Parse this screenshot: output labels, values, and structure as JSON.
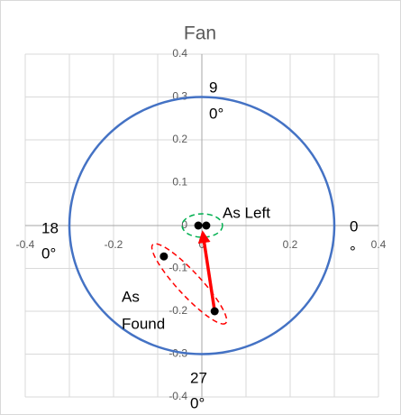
{
  "chart_data": {
    "type": "scatter",
    "title": "Fan",
    "xlim": [
      -0.4,
      0.4
    ],
    "ylim": [
      -0.4,
      0.4
    ],
    "xticks": [
      -0.4,
      -0.2,
      0,
      0.2,
      0.4
    ],
    "yticks": [
      -0.4,
      -0.3,
      -0.2,
      -0.1,
      0,
      0.1,
      0.2,
      0.3,
      0.4
    ],
    "xgrid": [
      -0.4,
      -0.3,
      -0.2,
      -0.1,
      0,
      0.1,
      0.2,
      0.3,
      0.4
    ],
    "reference_circle": {
      "radius": 0.3,
      "color": "#4472c4"
    },
    "series": [
      {
        "color": "#000000",
        "x": [
          -0.008,
          0.01
        ],
        "y": [
          0,
          0
        ],
        "enclosure_color": "#00b050"
      },
      {
        "color": "#000000",
        "x": [
          -0.086,
          0.029
        ],
        "y": [
          -0.072,
          -0.2
        ],
        "enclosure_color": "#ff0000"
      }
    ],
    "arrow": {
      "color": "#ff0000",
      "from": [
        0.029,
        -0.2
      ],
      "to": [
        0.002,
        -0.017
      ]
    },
    "annotations": [
      {
        "lines": [
          "9",
          "0°"
        ]
      },
      {
        "lines": [
          "18",
          "0°"
        ]
      },
      {
        "lines": [
          "0",
          "°"
        ]
      },
      {
        "lines": [
          "27",
          "0°"
        ]
      },
      {
        "lines": [
          "As Left"
        ]
      },
      {
        "lines": [
          "As",
          "Found"
        ]
      }
    ]
  }
}
